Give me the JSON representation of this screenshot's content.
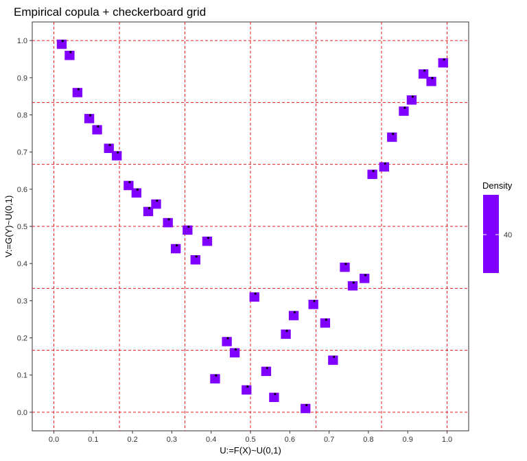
{
  "chart_data": {
    "type": "scatter",
    "title": "Empirical copula + checkerboard grid",
    "xlabel": "U:=F(X)~U(0,1)",
    "ylabel": "V:=G(Y)~U(0,1)",
    "xlim": [
      -0.055,
      1.055
    ],
    "ylim": [
      -0.05,
      1.05
    ],
    "xticks": [
      "0.0",
      "0.1",
      "0.2",
      "0.3",
      "0.4",
      "0.5",
      "0.6",
      "0.7",
      "0.8",
      "0.9",
      "1.0"
    ],
    "yticks": [
      "0.0",
      "0.1",
      "0.2",
      "0.3",
      "0.4",
      "0.5",
      "0.6",
      "0.7",
      "0.8",
      "0.9",
      "1.0"
    ],
    "grid_lines": [
      0,
      0.1667,
      0.3333,
      0.5,
      0.6667,
      0.8333,
      1
    ],
    "legend": {
      "title": "Density",
      "label": "40",
      "placement": "right"
    },
    "colors": {
      "tile": "#8000FF",
      "point": "#000000",
      "grid": "#E41A1C",
      "panel_border": "#333333"
    },
    "points": [
      {
        "x": 0.02,
        "y": 0.99
      },
      {
        "x": 0.04,
        "y": 0.96
      },
      {
        "x": 0.06,
        "y": 0.86
      },
      {
        "x": 0.09,
        "y": 0.79
      },
      {
        "x": 0.11,
        "y": 0.76
      },
      {
        "x": 0.14,
        "y": 0.71
      },
      {
        "x": 0.16,
        "y": 0.69
      },
      {
        "x": 0.19,
        "y": 0.61
      },
      {
        "x": 0.21,
        "y": 0.59
      },
      {
        "x": 0.24,
        "y": 0.54
      },
      {
        "x": 0.26,
        "y": 0.56
      },
      {
        "x": 0.29,
        "y": 0.51
      },
      {
        "x": 0.31,
        "y": 0.44
      },
      {
        "x": 0.34,
        "y": 0.49
      },
      {
        "x": 0.36,
        "y": 0.41
      },
      {
        "x": 0.39,
        "y": 0.46
      },
      {
        "x": 0.41,
        "y": 0.09
      },
      {
        "x": 0.44,
        "y": 0.19
      },
      {
        "x": 0.46,
        "y": 0.16
      },
      {
        "x": 0.49,
        "y": 0.06
      },
      {
        "x": 0.51,
        "y": 0.31
      },
      {
        "x": 0.54,
        "y": 0.11
      },
      {
        "x": 0.56,
        "y": 0.04
      },
      {
        "x": 0.59,
        "y": 0.21
      },
      {
        "x": 0.61,
        "y": 0.26
      },
      {
        "x": 0.64,
        "y": 0.01
      },
      {
        "x": 0.66,
        "y": 0.29
      },
      {
        "x": 0.69,
        "y": 0.24
      },
      {
        "x": 0.71,
        "y": 0.14
      },
      {
        "x": 0.74,
        "y": 0.39
      },
      {
        "x": 0.76,
        "y": 0.34
      },
      {
        "x": 0.79,
        "y": 0.36
      },
      {
        "x": 0.81,
        "y": 0.64
      },
      {
        "x": 0.84,
        "y": 0.66
      },
      {
        "x": 0.86,
        "y": 0.74
      },
      {
        "x": 0.89,
        "y": 0.81
      },
      {
        "x": 0.91,
        "y": 0.84
      },
      {
        "x": 0.94,
        "y": 0.91
      },
      {
        "x": 0.96,
        "y": 0.89
      },
      {
        "x": 0.99,
        "y": 0.94
      }
    ]
  }
}
